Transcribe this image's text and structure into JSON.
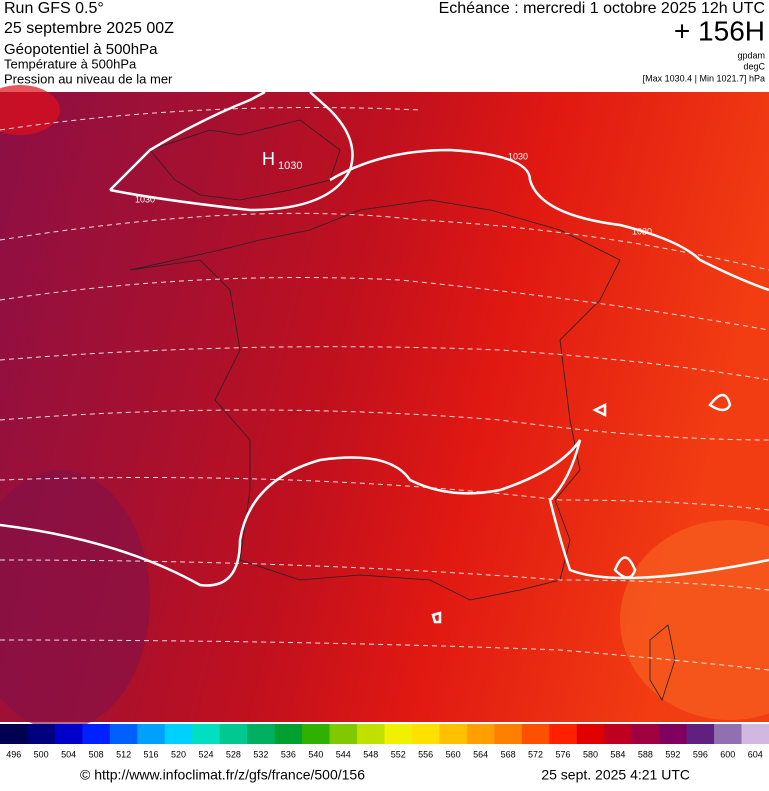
{
  "header": {
    "run": "Run GFS 0.5°",
    "run_date": "25 septembre 2025 00Z",
    "field_main": "Géopotentiel à 500hPa",
    "field_temp": "Température à 500hPa",
    "field_pressure": "Pression au niveau de la mer",
    "valid_time": "Echéance : mercredi 1 octobre 2025 12h UTC",
    "lead": "+ 156H",
    "unit_geo": "gpdam",
    "unit_temp": "degC",
    "extremes": "[Max 1030.4 | Min 1021.7] hPa"
  },
  "map": {
    "high_letter": "H",
    "high_value": "1030",
    "isobar_labels": [
      "1030",
      "1030",
      "1030"
    ]
  },
  "colorbar": {
    "labels": [
      496,
      500,
      504,
      508,
      512,
      516,
      520,
      524,
      528,
      532,
      536,
      540,
      544,
      548,
      552,
      556,
      560,
      564,
      568,
      572,
      576,
      580,
      584,
      588,
      592,
      596,
      600,
      604
    ],
    "colors": [
      "#000050",
      "#00007f",
      "#0000c8",
      "#0020ff",
      "#0060ff",
      "#00a0ff",
      "#00d0ff",
      "#00e0c0",
      "#00c890",
      "#00b060",
      "#00a030",
      "#30b000",
      "#80c800",
      "#c0e000",
      "#f0f000",
      "#ffe000",
      "#ffc000",
      "#ffa000",
      "#ff8000",
      "#ff5000",
      "#ff2000",
      "#e00000",
      "#c00020",
      "#a00040",
      "#800060",
      "#602080",
      "#9070b0",
      "#d0b8e0"
    ]
  },
  "footer": {
    "url": "© http://www.infoclimat.fr/z/gfs/france/500/156",
    "generated": "25 sept. 2025  4:21 UTC"
  }
}
